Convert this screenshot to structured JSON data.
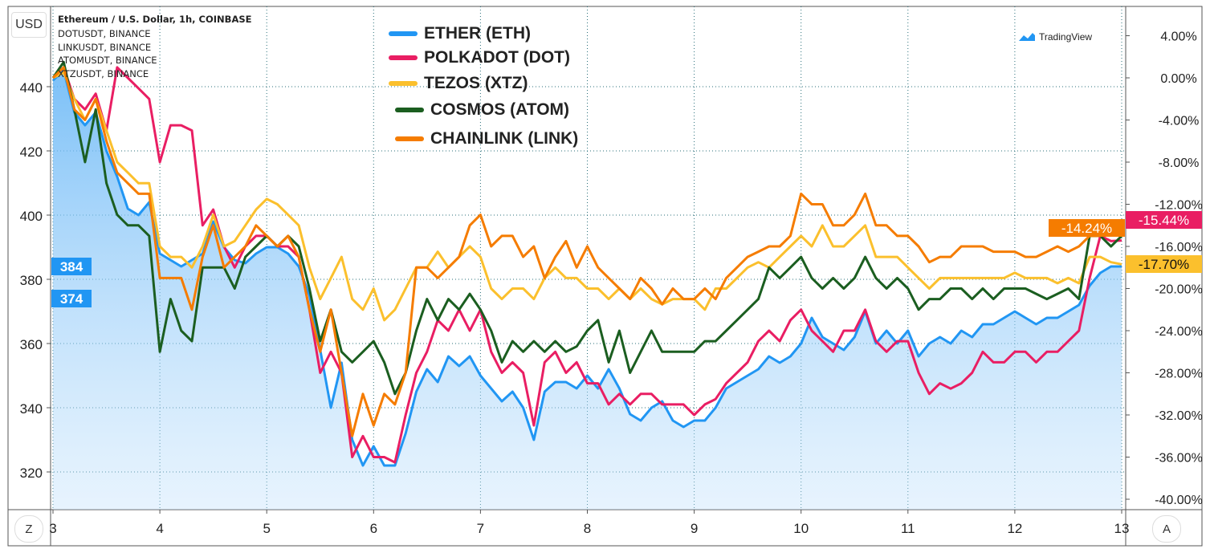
{
  "header": {
    "title": "Ethereum / U.S. Dollar, 1h, COINBASE",
    "symbols": [
      "DOTUSDT, BINANCE",
      "LINKUSDT, BINANCE",
      "ATOMUSDT, BINANCE",
      "XTZUSDT, BINANCE"
    ]
  },
  "currency_button": "USD",
  "logo": "TradingView",
  "zoom_button": "Z",
  "auto_button": "A",
  "legend": [
    {
      "label": "ETHER (ETH)",
      "color": "#2196f3"
    },
    {
      "label": "POLKADOT (DOT)",
      "color": "#e91e63"
    },
    {
      "label": "TEZOS (XTZ)",
      "color": "#fbc02d"
    },
    {
      "label": "COSMOS (ATOM)",
      "color": "#1b5e20"
    },
    {
      "label": "CHAINLINK (LINK)",
      "color": "#f57c00"
    }
  ],
  "chart_data": {
    "type": "line",
    "x_ticks": [
      "3",
      "4",
      "5",
      "6",
      "7",
      "8",
      "9",
      "10",
      "11",
      "12",
      "13"
    ],
    "left_axis": {
      "ticks": [
        "320",
        "340",
        "360",
        "380",
        "400",
        "420",
        "440"
      ],
      "range": [
        308,
        465
      ],
      "price_labels": [
        {
          "text": "384",
          "color": "#2196f3"
        },
        {
          "text": "374",
          "color": "#2196f3"
        }
      ]
    },
    "right_axis": {
      "ticks": [
        "4.00%",
        "0.00%",
        "-4.00%",
        "-8.00%",
        "-12.00%",
        "-16.00%",
        "-20.00%",
        "-24.00%",
        "-28.00%",
        "-32.00%",
        "-36.00%",
        "-40.00%"
      ],
      "range": [
        -40.4,
        7
      ],
      "last_labels": [
        {
          "text": "-14.24%",
          "color": "#f57c00"
        },
        {
          "text": "-15.44%",
          "color": "#e91e63"
        },
        {
          "text": "-17.70%",
          "color": "#fbc02d"
        }
      ]
    },
    "grid": true,
    "x": [
      3.0,
      3.1,
      3.2,
      3.3,
      3.4,
      3.5,
      3.6,
      3.7,
      3.8,
      3.9,
      4.0,
      4.1,
      4.2,
      4.3,
      4.4,
      4.5,
      4.6,
      4.7,
      4.8,
      4.9,
      5.0,
      5.1,
      5.2,
      5.3,
      5.4,
      5.5,
      5.6,
      5.7,
      5.8,
      5.9,
      6.0,
      6.1,
      6.2,
      6.3,
      6.4,
      6.5,
      6.6,
      6.7,
      6.8,
      6.9,
      7.0,
      7.1,
      7.2,
      7.3,
      7.4,
      7.5,
      7.6,
      7.7,
      7.8,
      7.9,
      8.0,
      8.1,
      8.2,
      8.3,
      8.4,
      8.5,
      8.6,
      8.7,
      8.8,
      8.9,
      9.0,
      9.1,
      9.2,
      9.3,
      9.4,
      9.5,
      9.6,
      9.7,
      9.8,
      9.9,
      10.0,
      10.1,
      10.2,
      10.3,
      10.4,
      10.5,
      10.6,
      10.7,
      10.8,
      10.9,
      11.0,
      11.1,
      11.2,
      11.3,
      11.4,
      11.5,
      11.6,
      11.7,
      11.8,
      11.9,
      12.0,
      12.1,
      12.2,
      12.3,
      12.4,
      12.5,
      12.6,
      12.7,
      12.8,
      12.9,
      13.0
    ],
    "series": [
      {
        "name": "ETHER (ETH)",
        "axis": "left",
        "unit": "USD",
        "color": "#2196f3",
        "area": true,
        "values": [
          442,
          445,
          432,
          428,
          432,
          420,
          412,
          402,
          400,
          404,
          388,
          386,
          384,
          386,
          388,
          398,
          390,
          386,
          385,
          388,
          390,
          390,
          388,
          384,
          375,
          358,
          340,
          354,
          330,
          322,
          328,
          322,
          322,
          332,
          345,
          352,
          348,
          356,
          353,
          356,
          350,
          346,
          342,
          345,
          340,
          330,
          345,
          348,
          348,
          346,
          350,
          346,
          352,
          346,
          338,
          336,
          340,
          342,
          336,
          334,
          336,
          336,
          340,
          346,
          348,
          350,
          352,
          356,
          354,
          356,
          360,
          368,
          362,
          360,
          358,
          362,
          370,
          360,
          364,
          360,
          364,
          356,
          360,
          362,
          360,
          364,
          362,
          366,
          366,
          368,
          370,
          368,
          366,
          368,
          368,
          370,
          372,
          378,
          382,
          384,
          384
        ]
      },
      {
        "name": "POLKADOT (DOT)",
        "axis": "right",
        "unit": "%",
        "color": "#e91e63",
        "values": [
          0,
          1,
          -2,
          -3,
          -1.5,
          -5,
          1,
          0,
          -1,
          -2,
          -8,
          -4.5,
          -4.5,
          -5,
          -14,
          -12.5,
          -16,
          -18,
          -16,
          -15,
          -15,
          -16,
          -16,
          -17,
          -22,
          -28,
          -26,
          -28,
          -36,
          -34,
          -36,
          -36,
          -36.5,
          -32,
          -28,
          -26,
          -23,
          -24,
          -22,
          -24,
          -22,
          -26,
          -28,
          -27,
          -28,
          -33,
          -27,
          -26,
          -28,
          -27,
          -29,
          -29,
          -31,
          -30,
          -31,
          -30,
          -30,
          -31,
          -31,
          -31,
          -32,
          -31,
          -30.5,
          -29,
          -28,
          -27,
          -25,
          -24,
          -25,
          -23,
          -22,
          -24,
          -25,
          -26,
          -24,
          -24,
          -22,
          -25,
          -26,
          -25,
          -25,
          -28,
          -30,
          -29,
          -29.5,
          -29,
          -28,
          -26,
          -27,
          -27,
          -26,
          -26,
          -27,
          -26,
          -26,
          -25,
          -24,
          -19,
          -15,
          -15.5,
          -15.44
        ]
      },
      {
        "name": "TEZOS (XTZ)",
        "axis": "right",
        "unit": "%",
        "color": "#fbc02d",
        "values": [
          0,
          0.5,
          -2,
          -4,
          -2,
          -5,
          -8,
          -9,
          -10,
          -10,
          -16,
          -17,
          -17,
          -18,
          -16,
          -13,
          -16,
          -15.5,
          -14,
          -12.5,
          -11.5,
          -12,
          -13,
          -14,
          -18,
          -21,
          -19,
          -17,
          -21,
          -22,
          -20,
          -23,
          -22,
          -20,
          -18,
          -18,
          -16.5,
          -18,
          -17,
          -16,
          -17,
          -20,
          -21,
          -20,
          -20,
          -21,
          -19,
          -18,
          -19,
          -19,
          -20,
          -20,
          -21,
          -20,
          -21,
          -20,
          -21,
          -21.5,
          -21,
          -21,
          -21,
          -22,
          -20,
          -20,
          -19,
          -18,
          -17.5,
          -18,
          -17,
          -16,
          -15,
          -16,
          -14,
          -16,
          -16,
          -15,
          -14,
          -17,
          -17,
          -17,
          -18,
          -19,
          -20,
          -19,
          -19,
          -19,
          -19,
          -19,
          -19,
          -19,
          -18.5,
          -19,
          -19,
          -19,
          -19.5,
          -19,
          -19.5,
          -17,
          -17,
          -17.5,
          -17.7
        ]
      },
      {
        "name": "COSMOS (ATOM)",
        "axis": "right",
        "unit": "%",
        "color": "#1b5e20",
        "values": [
          0,
          1.5,
          -3,
          -8,
          -3,
          -10,
          -13,
          -14,
          -14,
          -15,
          -26,
          -21,
          -24,
          -25,
          -18,
          -18,
          -18,
          -20,
          -17,
          -16,
          -15,
          -16,
          -15,
          -16,
          -20,
          -25,
          -22,
          -26,
          -27,
          -26,
          -25,
          -27,
          -30,
          -28,
          -24,
          -21,
          -23,
          -21,
          -22,
          -20.5,
          -22,
          -24,
          -27,
          -25,
          -26,
          -25,
          -26,
          -25,
          -26,
          -25.5,
          -24,
          -23,
          -27,
          -24,
          -28,
          -26,
          -24,
          -26,
          -26,
          -26,
          -26,
          -25,
          -25,
          -24,
          -23,
          -22,
          -21,
          -18,
          -19,
          -18,
          -17,
          -19,
          -20,
          -19,
          -20,
          -19,
          -17,
          -19,
          -20,
          -19,
          -20,
          -22,
          -21,
          -21,
          -20,
          -20,
          -21,
          -20,
          -21,
          -20,
          -20,
          -20,
          -20.5,
          -21,
          -20.5,
          -20,
          -21,
          -15,
          -15,
          -16,
          -15
        ]
      },
      {
        "name": "CHAINLINK (LINK)",
        "axis": "right",
        "unit": "%",
        "color": "#f57c00",
        "values": [
          0,
          1,
          -3,
          -4,
          -2,
          -6,
          -9,
          -10,
          -11,
          -11,
          -19,
          -19,
          -19,
          -22,
          -17,
          -14,
          -18,
          -17,
          -16,
          -14,
          -15,
          -16,
          -15,
          -17,
          -22,
          -26,
          -22,
          -28,
          -34,
          -30,
          -33,
          -30,
          -31,
          -28,
          -18,
          -18,
          -19,
          -18,
          -17,
          -14,
          -13,
          -16,
          -15,
          -15,
          -17,
          -16,
          -19,
          -17,
          -15.5,
          -18,
          -16,
          -18,
          -19,
          -20,
          -21,
          -19,
          -20,
          -21.5,
          -20,
          -21,
          -21,
          -20,
          -21,
          -19,
          -18,
          -17,
          -16.5,
          -16,
          -16,
          -15,
          -11,
          -12,
          -12,
          -14,
          -14,
          -13,
          -11,
          -14,
          -14,
          -15,
          -15,
          -16,
          -17.5,
          -17,
          -17,
          -16,
          -16,
          -16,
          -16.5,
          -16.5,
          -16.5,
          -17,
          -17,
          -16.5,
          -16,
          -16.5,
          -16,
          -15,
          -15,
          -14.5,
          -14.24
        ]
      }
    ]
  }
}
